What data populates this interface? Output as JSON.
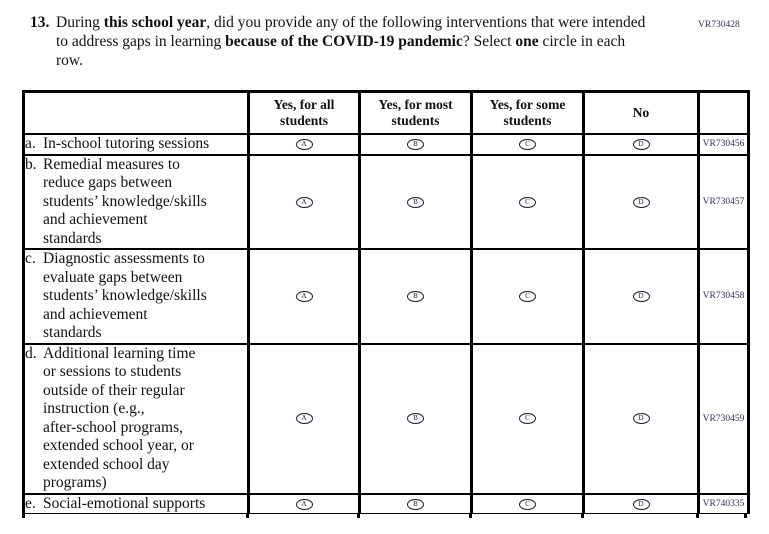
{
  "page_code": "VR730428",
  "question": {
    "number": "13.",
    "segments": [
      {
        "text": "During ",
        "bold": false
      },
      {
        "text": "this school year",
        "bold": true
      },
      {
        "text": ", did you provide any of the following interventions that were intended to address gaps in learning ",
        "bold": false
      },
      {
        "text": "because of the COVID-19 pandemic",
        "bold": true
      },
      {
        "text": "? Select ",
        "bold": false
      },
      {
        "text": "one",
        "bold": true
      },
      {
        "text": " circle in each row.",
        "bold": false
      }
    ]
  },
  "table": {
    "columns": [
      "",
      "Yes, for all students",
      "Yes, for most students",
      "Yes, for some students",
      "No",
      ""
    ],
    "option_letters": [
      "A",
      "B",
      "C",
      "D"
    ],
    "rows": [
      {
        "label": "a.",
        "text": "In-school tutoring sessions",
        "code": "VR730456"
      },
      {
        "label": "b.",
        "text": "Remedial measures to\nreduce gaps between\nstudents’ knowledge/skills\nand achievement\nstandards",
        "code": "VR730457"
      },
      {
        "label": "c.",
        "text": "Diagnostic assessments to\nevaluate gaps between\nstudents’ knowledge/skills\nand achievement\nstandards",
        "code": "VR730458"
      },
      {
        "label": "d.",
        "text": "Additional learning time\nor sessions to students\noutside of their regular\ninstruction (e.g.,\nafter-school programs,\nextended school year, or\nextended school day\nprograms)",
        "code": "VR730459"
      },
      {
        "label": "e.",
        "text": "Social-emotional supports",
        "code": "VR740335"
      }
    ]
  },
  "colors": {
    "ink": "#111111",
    "code_ink": "#2f2f5f",
    "bubble_ink": "#1c1c3a",
    "background": "#ffffff"
  }
}
